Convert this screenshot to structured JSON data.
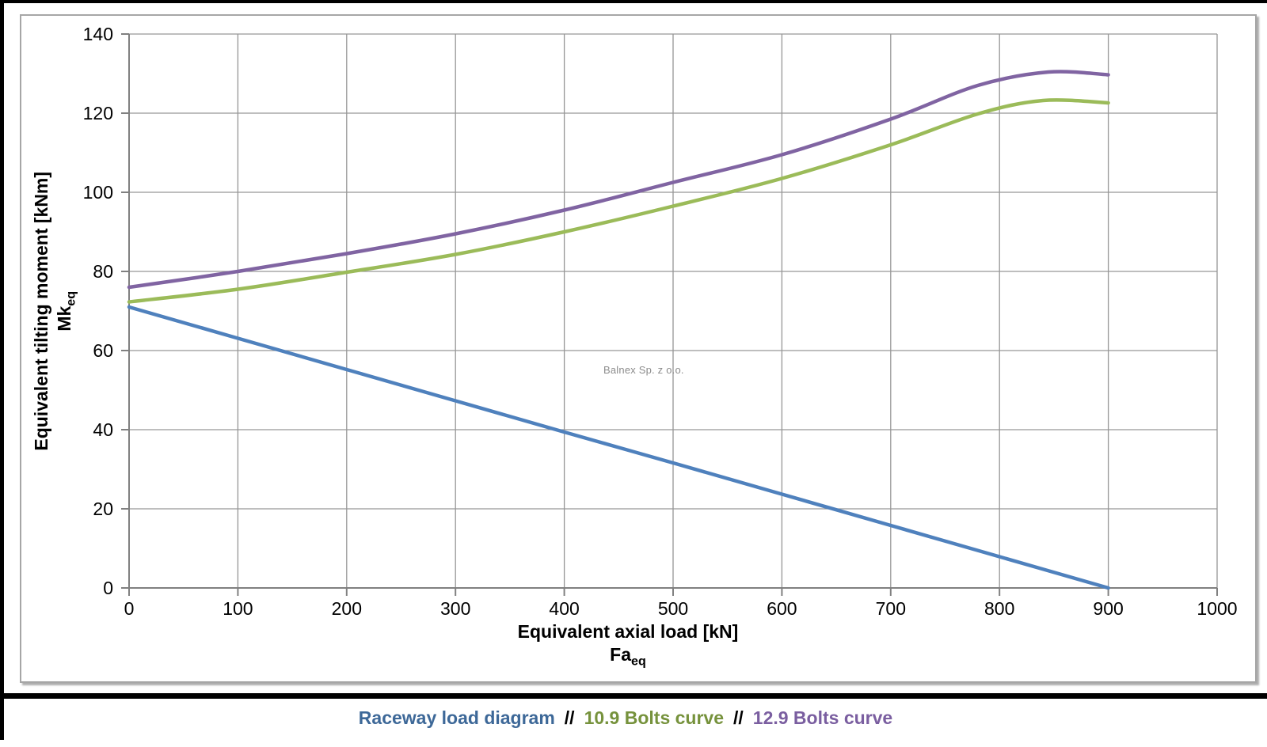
{
  "chart_data": {
    "type": "line",
    "title": "",
    "grid": "both",
    "legend_position": "bottom-caption",
    "x_axis": {
      "label": "Equivalent axial load [kN]",
      "symbol": "Fa",
      "symbol_sub": "eq",
      "min": 0,
      "max": 1000,
      "tick_step": 100,
      "ticks": [
        0,
        100,
        200,
        300,
        400,
        500,
        600,
        700,
        800,
        900,
        1000
      ]
    },
    "y_axis": {
      "label": "Equivalent tilting moment [kNm]",
      "symbol": "Mk",
      "symbol_sub": "eq",
      "min": 0,
      "max": 140,
      "tick_step": 20,
      "ticks": [
        0,
        20,
        40,
        60,
        80,
        100,
        120,
        140
      ]
    },
    "series": [
      {
        "name": "Raceway load diagram",
        "color": "#4F81BD",
        "label_color": "#3D6898",
        "points": [
          [
            0,
            71
          ],
          [
            100,
            63.1
          ],
          [
            200,
            55.2
          ],
          [
            300,
            47.3
          ],
          [
            400,
            39.4
          ],
          [
            500,
            31.6
          ],
          [
            600,
            23.7
          ],
          [
            700,
            15.8
          ],
          [
            800,
            7.9
          ],
          [
            900,
            0
          ]
        ]
      },
      {
        "name": "10.9 Bolts curve",
        "color": "#9BBB59",
        "label_color": "#76923C",
        "points": [
          [
            0,
            72.3
          ],
          [
            100,
            75.5
          ],
          [
            200,
            79.8
          ],
          [
            300,
            84.3
          ],
          [
            400,
            90
          ],
          [
            500,
            96.5
          ],
          [
            600,
            103.5
          ],
          [
            700,
            112
          ],
          [
            780,
            119.8
          ],
          [
            840,
            123.2
          ],
          [
            900,
            122.6
          ]
        ]
      },
      {
        "name": "12.9 Bolts curve",
        "color": "#8064A2",
        "label_color": "#7A5EA0",
        "points": [
          [
            0,
            76
          ],
          [
            100,
            80
          ],
          [
            200,
            84.5
          ],
          [
            300,
            89.5
          ],
          [
            400,
            95.5
          ],
          [
            500,
            102.5
          ],
          [
            600,
            109.5
          ],
          [
            700,
            118.5
          ],
          [
            780,
            127
          ],
          [
            845,
            130.4
          ],
          [
            900,
            129.7
          ]
        ]
      }
    ]
  },
  "legend": {
    "separator": "//"
  },
  "watermark": "Balnex Sp. z o.o."
}
